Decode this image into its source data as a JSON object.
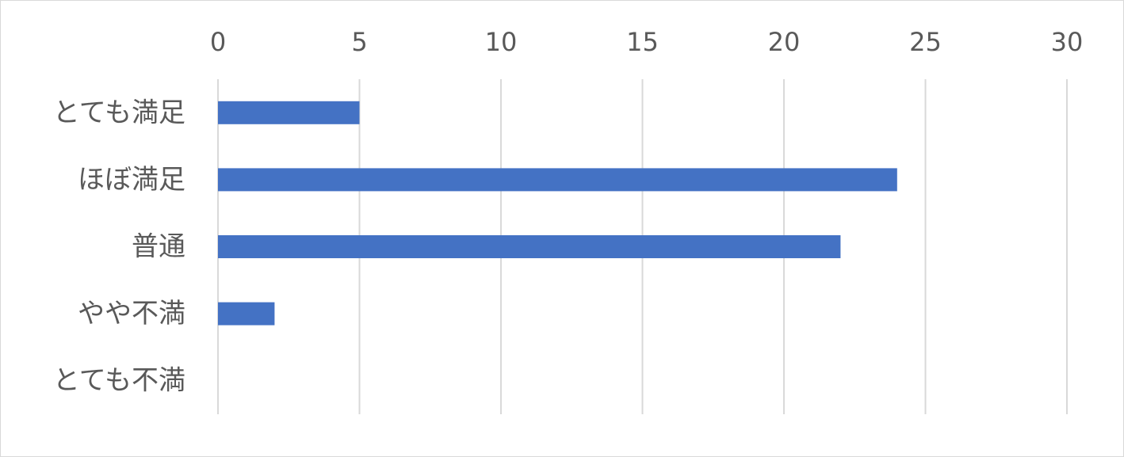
{
  "chart_data": {
    "type": "bar",
    "orientation": "horizontal",
    "title": "",
    "xlabel": "",
    "ylabel": "",
    "categories": [
      "とても満足",
      "ほぼ満足",
      "普通",
      "やや不満",
      "とても不満"
    ],
    "values": [
      5,
      24,
      22,
      2,
      0
    ],
    "xlim": [
      0,
      30
    ],
    "ticks": [
      0,
      5,
      10,
      15,
      20,
      25,
      30
    ],
    "tick_labels": [
      "0",
      "5",
      "10",
      "15",
      "20",
      "25",
      "30"
    ],
    "x_axis_position": "top",
    "grid": true,
    "legend": "none",
    "bar_color": "#4472c4"
  }
}
